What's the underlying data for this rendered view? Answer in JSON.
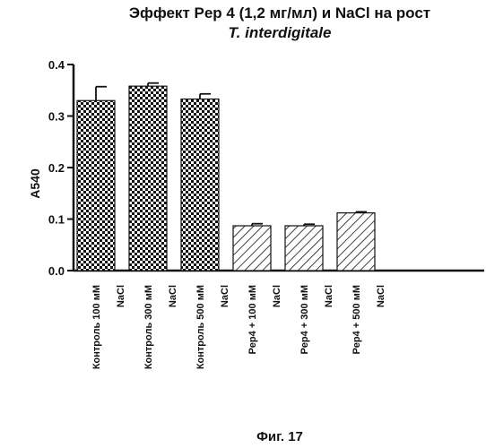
{
  "chart_data": {
    "type": "bar",
    "title_line1": "Эффект Pep 4 (1,2 мг/мл) и NaCl на рост",
    "title_line2": "T. interdigitale",
    "ylabel": "A540",
    "ylim": [
      0,
      0.4
    ],
    "yticks": [
      "0.0",
      "0.1",
      "0.2",
      "0.3",
      "0.4"
    ],
    "grid": false,
    "categories": [
      {
        "line1": "Контроль  100 мМ",
        "line2": "NaCl"
      },
      {
        "line1": "Контроль  300 мМ",
        "line2": "NaCl"
      },
      {
        "line1": "Контроль  500 мМ",
        "line2": "NaCl"
      },
      {
        "line1": "Pep4 +  100 мМ",
        "line2": "NaCl"
      },
      {
        "line1": "Pep4 +  300 мМ",
        "line2": "NaCl"
      },
      {
        "line1": "Pep4 +  500 мМ",
        "line2": "NaCl"
      }
    ],
    "values": [
      0.33,
      0.358,
      0.333,
      0.087,
      0.087,
      0.112
    ],
    "errors": [
      0.027,
      0.006,
      0.01,
      0.004,
      0.003,
      0.002
    ],
    "patterns": [
      "checker",
      "checker",
      "checker",
      "hatch",
      "hatch",
      "hatch"
    ]
  },
  "figure_caption": "Фиг. 17"
}
